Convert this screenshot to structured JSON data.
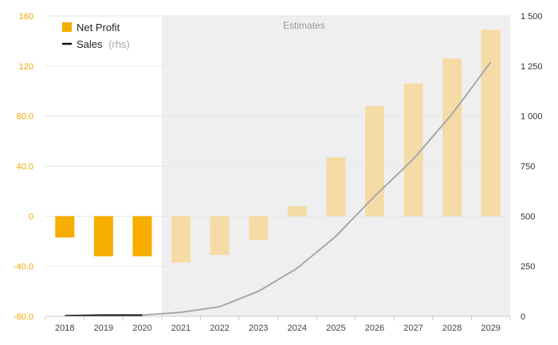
{
  "chart_data": {
    "type": "bar",
    "categories": [
      "2018",
      "2019",
      "2020",
      "2021",
      "2022",
      "2023",
      "2024",
      "2025",
      "2026",
      "2027",
      "2028",
      "2029"
    ],
    "series": [
      {
        "name": "Net Profit",
        "axis": "left",
        "kind": "bar",
        "color": "#f7ad00",
        "estimate_color": "#f5dca6",
        "values": [
          -17,
          -32,
          -32,
          -37,
          -31,
          -19,
          8,
          47,
          88,
          106,
          126,
          149
        ]
      },
      {
        "name": "Sales",
        "name_suffix": "(rhs)",
        "axis": "right",
        "kind": "line",
        "color": "#111111",
        "estimate_color": "#a8a8a8",
        "values": [
          3,
          6,
          6,
          20,
          48,
          125,
          240,
          400,
          600,
          785,
          1010,
          1270
        ]
      }
    ],
    "estimates_label": "Estimates",
    "estimates_start_index": 3,
    "y_left": {
      "min": -80,
      "max": 160,
      "ticks": [
        160,
        120,
        80,
        40,
        0,
        -40,
        -80
      ],
      "tick_labels": [
        "160",
        "120",
        "80.0",
        "40.0",
        "0",
        "-40.0",
        "-80.0"
      ]
    },
    "y_right": {
      "min": 0,
      "max": 1500,
      "ticks": [
        1500,
        1250,
        1000,
        750,
        500,
        250,
        0
      ],
      "tick_labels": [
        "1 500",
        "1 250",
        "1 000",
        "750",
        "500",
        "250",
        "0"
      ]
    },
    "grid": true,
    "legend_position": "top-left",
    "colors": {
      "estimates_band": "#efefef",
      "grid": "#e6e6e6",
      "left_axis_text": "#f5a800"
    }
  }
}
